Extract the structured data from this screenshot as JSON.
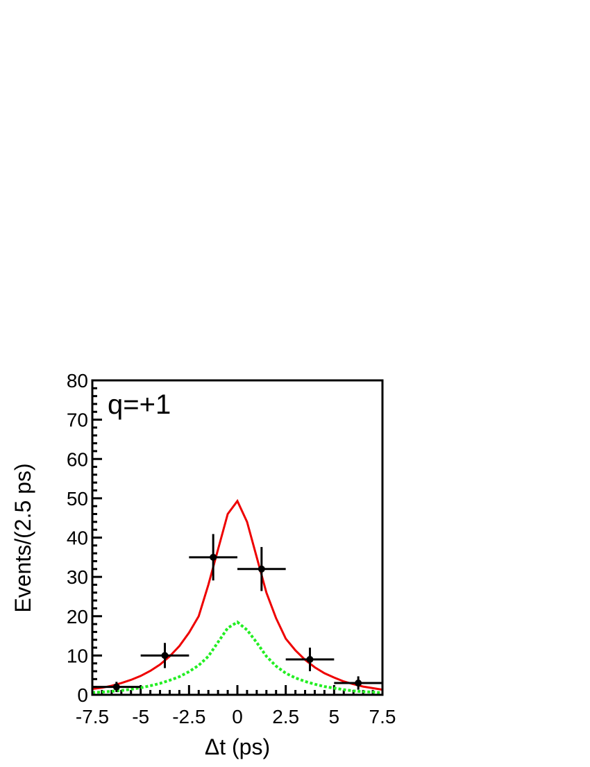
{
  "chart_data": {
    "type": "errorbar",
    "annotation": "q=+1",
    "xlabel": "Δt (ps)",
    "ylabel": "Events/(2.5 ps)",
    "xlim": [
      -7.5,
      7.5
    ],
    "ylim": [
      0,
      80
    ],
    "xticks": [
      -7.5,
      -5,
      -2.5,
      0,
      2.5,
      5,
      7.5
    ],
    "yticks": [
      0,
      10,
      20,
      30,
      40,
      50,
      60,
      70,
      80
    ],
    "series": [
      {
        "type": "line",
        "color": "#ee0000",
        "dash": false,
        "x": [
          -7.5,
          -7,
          -6.5,
          -6,
          -5.5,
          -5,
          -4.5,
          -4,
          -3.5,
          -3,
          -2.5,
          -2,
          -1.5,
          -1,
          -0.5,
          0,
          0.5,
          1,
          1.5,
          2,
          2.5,
          3,
          3.5,
          4,
          4.5,
          5,
          5.5,
          6,
          6.5,
          7,
          7.5
        ],
        "values": [
          1.5,
          1.8,
          2.3,
          3.0,
          3.8,
          4.8,
          6.1,
          7.7,
          9.8,
          12.4,
          15.8,
          20.0,
          28,
          37,
          46,
          49.3,
          44,
          35,
          26,
          19.5,
          14.3,
          11.3,
          8.9,
          7.0,
          5.5,
          4.4,
          3.4,
          2.7,
          2.1,
          1.7,
          1.3
        ]
      },
      {
        "type": "line",
        "color": "#22ee22",
        "dash": true,
        "x": [
          -7.5,
          -7,
          -6.5,
          -6,
          -5.5,
          -5,
          -4.5,
          -4,
          -3.5,
          -3,
          -2.5,
          -2,
          -1.5,
          -1,
          -0.5,
          0,
          0.5,
          1,
          1.5,
          2,
          2.5,
          3,
          3.5,
          4,
          4.5,
          5,
          5.5,
          6,
          6.5,
          7,
          7.5
        ],
        "values": [
          0.6,
          0.7,
          0.9,
          1.1,
          1.4,
          1.8,
          2.3,
          2.9,
          3.7,
          4.6,
          5.9,
          7.5,
          9.8,
          13.4,
          17.0,
          18.5,
          16.5,
          13.3,
          9.8,
          7.3,
          5.5,
          4.3,
          3.4,
          2.7,
          2.1,
          1.7,
          1.3,
          1.0,
          0.8,
          0.7,
          0.5
        ]
      },
      {
        "type": "errorbar",
        "color": "#000000",
        "x": [
          -6.25,
          -3.75,
          -1.25,
          1.25,
          3.75,
          6.25
        ],
        "values": [
          2,
          10,
          35,
          32,
          9,
          3
        ],
        "xerr": [
          1.25,
          1.25,
          1.25,
          1.25,
          1.25,
          1.25
        ],
        "yerr": [
          1.3,
          3.2,
          5.9,
          5.6,
          3.0,
          1.7
        ]
      }
    ]
  }
}
